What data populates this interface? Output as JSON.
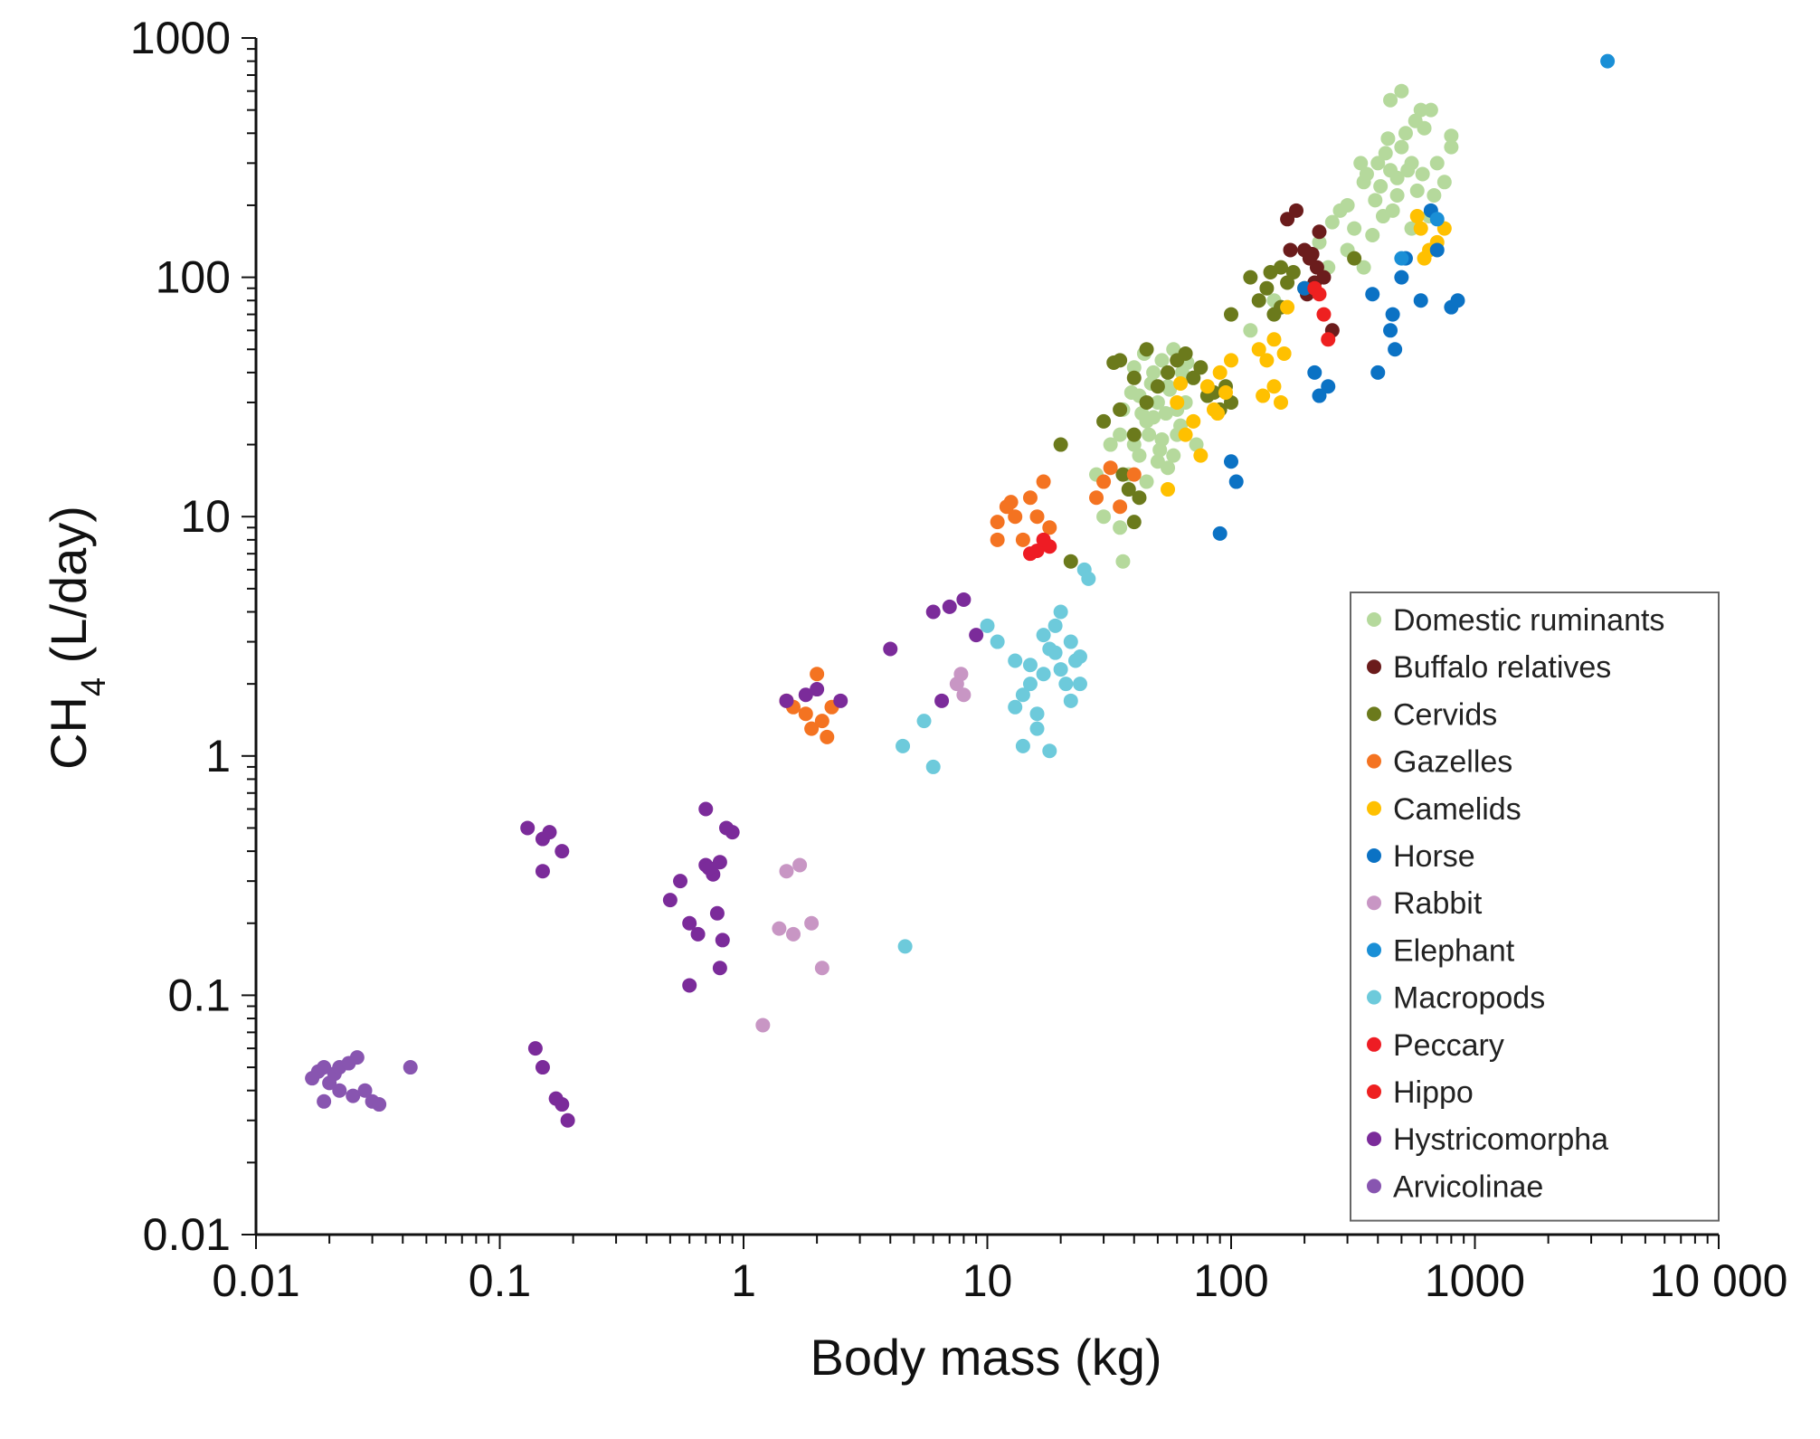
{
  "chart_data": {
    "type": "scatter",
    "title": "",
    "xlabel": "Body mass (kg)",
    "ylabel_main": "CH",
    "ylabel_sub": "4",
    "ylabel_unit": " (L/day)",
    "xscale": "log",
    "yscale": "log",
    "xlim": [
      0.01,
      10000
    ],
    "ylim": [
      0.01,
      1000
    ],
    "x_ticks": [
      {
        "value": 0.01,
        "label": "0.01"
      },
      {
        "value": 0.1,
        "label": "0.1"
      },
      {
        "value": 1,
        "label": "1"
      },
      {
        "value": 10,
        "label": "10"
      },
      {
        "value": 100,
        "label": "100"
      },
      {
        "value": 1000,
        "label": "1000"
      },
      {
        "value": 10000,
        "label": "10 000"
      }
    ],
    "y_ticks": [
      {
        "value": 0.01,
        "label": "0.01"
      },
      {
        "value": 0.1,
        "label": "0.1"
      },
      {
        "value": 1,
        "label": "1"
      },
      {
        "value": 10,
        "label": "10"
      },
      {
        "value": 100,
        "label": "100"
      },
      {
        "value": 1000,
        "label": "1000"
      }
    ],
    "legend_position": "bottom-right",
    "series": [
      {
        "name": "Domestic ruminants",
        "color": "#b5d99c",
        "points": [
          [
            40,
            20
          ],
          [
            45,
            25
          ],
          [
            50,
            30
          ],
          [
            55,
            35
          ],
          [
            60,
            28
          ],
          [
            35,
            22
          ],
          [
            42,
            18
          ],
          [
            48,
            40
          ],
          [
            52,
            45
          ],
          [
            58,
            50
          ],
          [
            38,
            15
          ],
          [
            45,
            14
          ],
          [
            55,
            16
          ],
          [
            60,
            22
          ],
          [
            65,
            30
          ],
          [
            70,
            38
          ],
          [
            42,
            32
          ],
          [
            48,
            26
          ],
          [
            52,
            21
          ],
          [
            44,
            48
          ],
          [
            36,
            28
          ],
          [
            32,
            20
          ],
          [
            40,
            42
          ],
          [
            58,
            18
          ],
          [
            62,
            24
          ],
          [
            47,
            36
          ],
          [
            50,
            17
          ],
          [
            54,
            27
          ],
          [
            39,
            33
          ],
          [
            35,
            9
          ],
          [
            36,
            6.5
          ],
          [
            30,
            10
          ],
          [
            66,
            44
          ],
          [
            72,
            20
          ],
          [
            28,
            15
          ],
          [
            46,
            22
          ],
          [
            56,
            34
          ],
          [
            43,
            27
          ],
          [
            51,
            19
          ],
          [
            63,
            40
          ],
          [
            300,
            200
          ],
          [
            350,
            250
          ],
          [
            400,
            300
          ],
          [
            450,
            280
          ],
          [
            500,
            350
          ],
          [
            550,
            300
          ],
          [
            480,
            220
          ],
          [
            420,
            180
          ],
          [
            380,
            150
          ],
          [
            320,
            160
          ],
          [
            280,
            190
          ],
          [
            520,
            400
          ],
          [
            600,
            500
          ],
          [
            450,
            550
          ],
          [
            500,
            600
          ],
          [
            620,
            420
          ],
          [
            700,
            300
          ],
          [
            800,
            350
          ],
          [
            750,
            250
          ],
          [
            650,
            180
          ],
          [
            550,
            160
          ],
          [
            480,
            260
          ],
          [
            430,
            330
          ],
          [
            360,
            270
          ],
          [
            390,
            210
          ],
          [
            460,
            190
          ],
          [
            580,
            230
          ],
          [
            300,
            130
          ],
          [
            250,
            110
          ],
          [
            230,
            140
          ],
          [
            260,
            170
          ],
          [
            350,
            110
          ],
          [
            410,
            240
          ],
          [
            530,
            280
          ],
          [
            610,
            270
          ],
          [
            680,
            220
          ],
          [
            340,
            300
          ],
          [
            440,
            380
          ],
          [
            570,
            450
          ],
          [
            660,
            500
          ],
          [
            800,
            390
          ],
          [
            150,
            80
          ],
          [
            120,
            60
          ]
        ]
      },
      {
        "name": "Buffalo relatives",
        "color": "#6b1c1c",
        "points": [
          [
            170,
            175
          ],
          [
            185,
            190
          ],
          [
            200,
            130
          ],
          [
            210,
            120
          ],
          [
            225,
            110
          ],
          [
            240,
            100
          ],
          [
            230,
            155
          ],
          [
            220,
            95
          ],
          [
            260,
            60
          ],
          [
            175,
            130
          ],
          [
            205,
            85
          ],
          [
            215,
            125
          ]
        ]
      },
      {
        "name": "Cervids",
        "color": "#6b7a1c",
        "points": [
          [
            30,
            25
          ],
          [
            35,
            28
          ],
          [
            40,
            22
          ],
          [
            45,
            30
          ],
          [
            50,
            35
          ],
          [
            55,
            40
          ],
          [
            60,
            45
          ],
          [
            70,
            38
          ],
          [
            80,
            32
          ],
          [
            90,
            28
          ],
          [
            100,
            30
          ],
          [
            35,
            45
          ],
          [
            40,
            38
          ],
          [
            45,
            50
          ],
          [
            65,
            48
          ],
          [
            75,
            42
          ],
          [
            85,
            33
          ],
          [
            95,
            35
          ],
          [
            120,
            100
          ],
          [
            140,
            90
          ],
          [
            160,
            110
          ],
          [
            180,
            105
          ],
          [
            150,
            70
          ],
          [
            100,
            70
          ],
          [
            130,
            80
          ],
          [
            170,
            95
          ],
          [
            200,
            90
          ],
          [
            20,
            20
          ],
          [
            22,
            6.5
          ],
          [
            38,
            13
          ],
          [
            40,
            9.5
          ],
          [
            36,
            15
          ],
          [
            42,
            12
          ],
          [
            33,
            44
          ],
          [
            320,
            120
          ],
          [
            160,
            75
          ],
          [
            145,
            105
          ]
        ]
      },
      {
        "name": "Gazelles",
        "color": "#f47321",
        "points": [
          [
            11,
            9.5
          ],
          [
            12,
            11
          ],
          [
            13,
            10
          ],
          [
            14,
            8
          ],
          [
            15,
            12
          ],
          [
            16,
            10
          ],
          [
            17,
            14
          ],
          [
            18,
            9
          ],
          [
            11,
            8
          ],
          [
            12.5,
            11.5
          ],
          [
            1.5,
            1.7
          ],
          [
            1.6,
            1.6
          ],
          [
            1.8,
            1.5
          ],
          [
            2,
            2.2
          ],
          [
            2.1,
            1.4
          ],
          [
            1.9,
            1.3
          ],
          [
            2.2,
            1.2
          ],
          [
            2.3,
            1.6
          ],
          [
            30,
            14
          ],
          [
            32,
            16
          ],
          [
            28,
            12
          ],
          [
            35,
            11
          ],
          [
            40,
            15
          ]
        ]
      },
      {
        "name": "Camelids",
        "color": "#ffc000",
        "points": [
          [
            60,
            30
          ],
          [
            70,
            25
          ],
          [
            80,
            35
          ],
          [
            90,
            40
          ],
          [
            100,
            45
          ],
          [
            65,
            22
          ],
          [
            85,
            28
          ],
          [
            95,
            33
          ],
          [
            55,
            13
          ],
          [
            75,
            18
          ],
          [
            88,
            27
          ],
          [
            62,
            36
          ],
          [
            130,
            50
          ],
          [
            140,
            45
          ],
          [
            150,
            35
          ],
          [
            160,
            30
          ],
          [
            170,
            75
          ],
          [
            150,
            55
          ],
          [
            135,
            32
          ],
          [
            165,
            48
          ],
          [
            580,
            180
          ],
          [
            600,
            160
          ],
          [
            650,
            130
          ],
          [
            700,
            140
          ],
          [
            750,
            160
          ],
          [
            620,
            120
          ]
        ]
      },
      {
        "name": "Horse",
        "color": "#0b72c4",
        "points": [
          [
            220,
            40
          ],
          [
            230,
            32
          ],
          [
            250,
            35
          ],
          [
            200,
            90
          ],
          [
            380,
            85
          ],
          [
            450,
            60
          ],
          [
            460,
            70
          ],
          [
            470,
            50
          ],
          [
            400,
            40
          ],
          [
            500,
            100
          ],
          [
            520,
            120
          ],
          [
            600,
            80
          ],
          [
            700,
            130
          ],
          [
            800,
            75
          ],
          [
            850,
            80
          ],
          [
            90,
            8.5
          ],
          [
            100,
            17
          ],
          [
            105,
            14
          ],
          [
            660,
            190
          ]
        ]
      },
      {
        "name": "Rabbit",
        "color": "#c896c4",
        "points": [
          [
            1.2,
            0.075
          ],
          [
            1.4,
            0.19
          ],
          [
            1.6,
            0.18
          ],
          [
            1.7,
            0.35
          ],
          [
            1.9,
            0.2
          ],
          [
            2.1,
            0.13
          ],
          [
            1.5,
            0.33
          ],
          [
            7.5,
            2
          ],
          [
            8,
            1.8
          ],
          [
            7.8,
            2.2
          ]
        ]
      },
      {
        "name": "Elephant",
        "color": "#1a8fd6",
        "points": [
          [
            3500,
            800
          ],
          [
            500,
            120
          ],
          [
            700,
            175
          ]
        ]
      },
      {
        "name": "Macropods",
        "color": "#6dcadb",
        "points": [
          [
            4.5,
            1.1
          ],
          [
            5.5,
            1.4
          ],
          [
            6,
            0.9
          ],
          [
            4.6,
            0.16
          ],
          [
            10,
            3.5
          ],
          [
            11,
            3
          ],
          [
            13,
            2.5
          ],
          [
            14,
            1.8
          ],
          [
            15,
            2.0
          ],
          [
            16,
            1.5
          ],
          [
            17,
            2.2
          ],
          [
            18,
            2.8
          ],
          [
            19,
            3.5
          ],
          [
            20,
            4
          ],
          [
            21,
            2.0
          ],
          [
            22,
            1.7
          ],
          [
            23,
            2.5
          ],
          [
            24,
            2.0
          ],
          [
            25,
            6
          ],
          [
            26,
            5.5
          ],
          [
            14,
            1.1
          ],
          [
            16,
            1.3
          ],
          [
            18,
            1.05
          ],
          [
            15,
            2.4
          ],
          [
            17,
            3.2
          ],
          [
            19,
            2.7
          ],
          [
            22,
            3.0
          ],
          [
            13,
            1.6
          ],
          [
            20,
            2.3
          ],
          [
            24,
            2.6
          ]
        ]
      },
      {
        "name": "Peccary",
        "color": "#ee1c24",
        "points": [
          [
            15,
            7
          ],
          [
            16,
            7.2
          ],
          [
            17,
            8
          ],
          [
            18,
            7.5
          ]
        ]
      },
      {
        "name": "Hippo",
        "color": "#ee2020",
        "points": [
          [
            220,
            90
          ],
          [
            240,
            70
          ],
          [
            250,
            55
          ],
          [
            230,
            85
          ]
        ]
      },
      {
        "name": "Hystricomorpha",
        "color": "#7b2b9a",
        "points": [
          [
            0.13,
            0.5
          ],
          [
            0.15,
            0.45
          ],
          [
            0.16,
            0.48
          ],
          [
            0.18,
            0.4
          ],
          [
            0.14,
            0.06
          ],
          [
            0.15,
            0.05
          ],
          [
            0.18,
            0.035
          ],
          [
            0.19,
            0.03
          ],
          [
            0.17,
            0.037
          ],
          [
            0.5,
            0.25
          ],
          [
            0.55,
            0.3
          ],
          [
            0.6,
            0.2
          ],
          [
            0.65,
            0.18
          ],
          [
            0.7,
            0.35
          ],
          [
            0.75,
            0.32
          ],
          [
            0.8,
            0.36
          ],
          [
            0.85,
            0.5
          ],
          [
            0.9,
            0.48
          ],
          [
            0.6,
            0.11
          ],
          [
            0.8,
            0.13
          ],
          [
            0.82,
            0.17
          ],
          [
            0.78,
            0.22
          ],
          [
            0.7,
            0.6
          ],
          [
            0.72,
            0.34
          ],
          [
            1.5,
            1.7
          ],
          [
            1.8,
            1.8
          ],
          [
            2,
            1.9
          ],
          [
            2.5,
            1.7
          ],
          [
            4,
            2.8
          ],
          [
            6,
            4
          ],
          [
            7,
            4.2
          ],
          [
            8,
            4.5
          ],
          [
            9,
            3.2
          ],
          [
            6.5,
            1.7
          ],
          [
            0.15,
            0.33
          ]
        ]
      },
      {
        "name": "Arvicolinae",
        "color": "#8855b0",
        "points": [
          [
            0.017,
            0.045
          ],
          [
            0.018,
            0.048
          ],
          [
            0.019,
            0.05
          ],
          [
            0.02,
            0.043
          ],
          [
            0.021,
            0.047
          ],
          [
            0.022,
            0.05
          ],
          [
            0.024,
            0.052
          ],
          [
            0.026,
            0.055
          ],
          [
            0.028,
            0.04
          ],
          [
            0.03,
            0.036
          ],
          [
            0.025,
            0.038
          ],
          [
            0.022,
            0.04
          ],
          [
            0.019,
            0.036
          ],
          [
            0.043,
            0.05
          ],
          [
            0.032,
            0.035
          ]
        ]
      }
    ]
  }
}
